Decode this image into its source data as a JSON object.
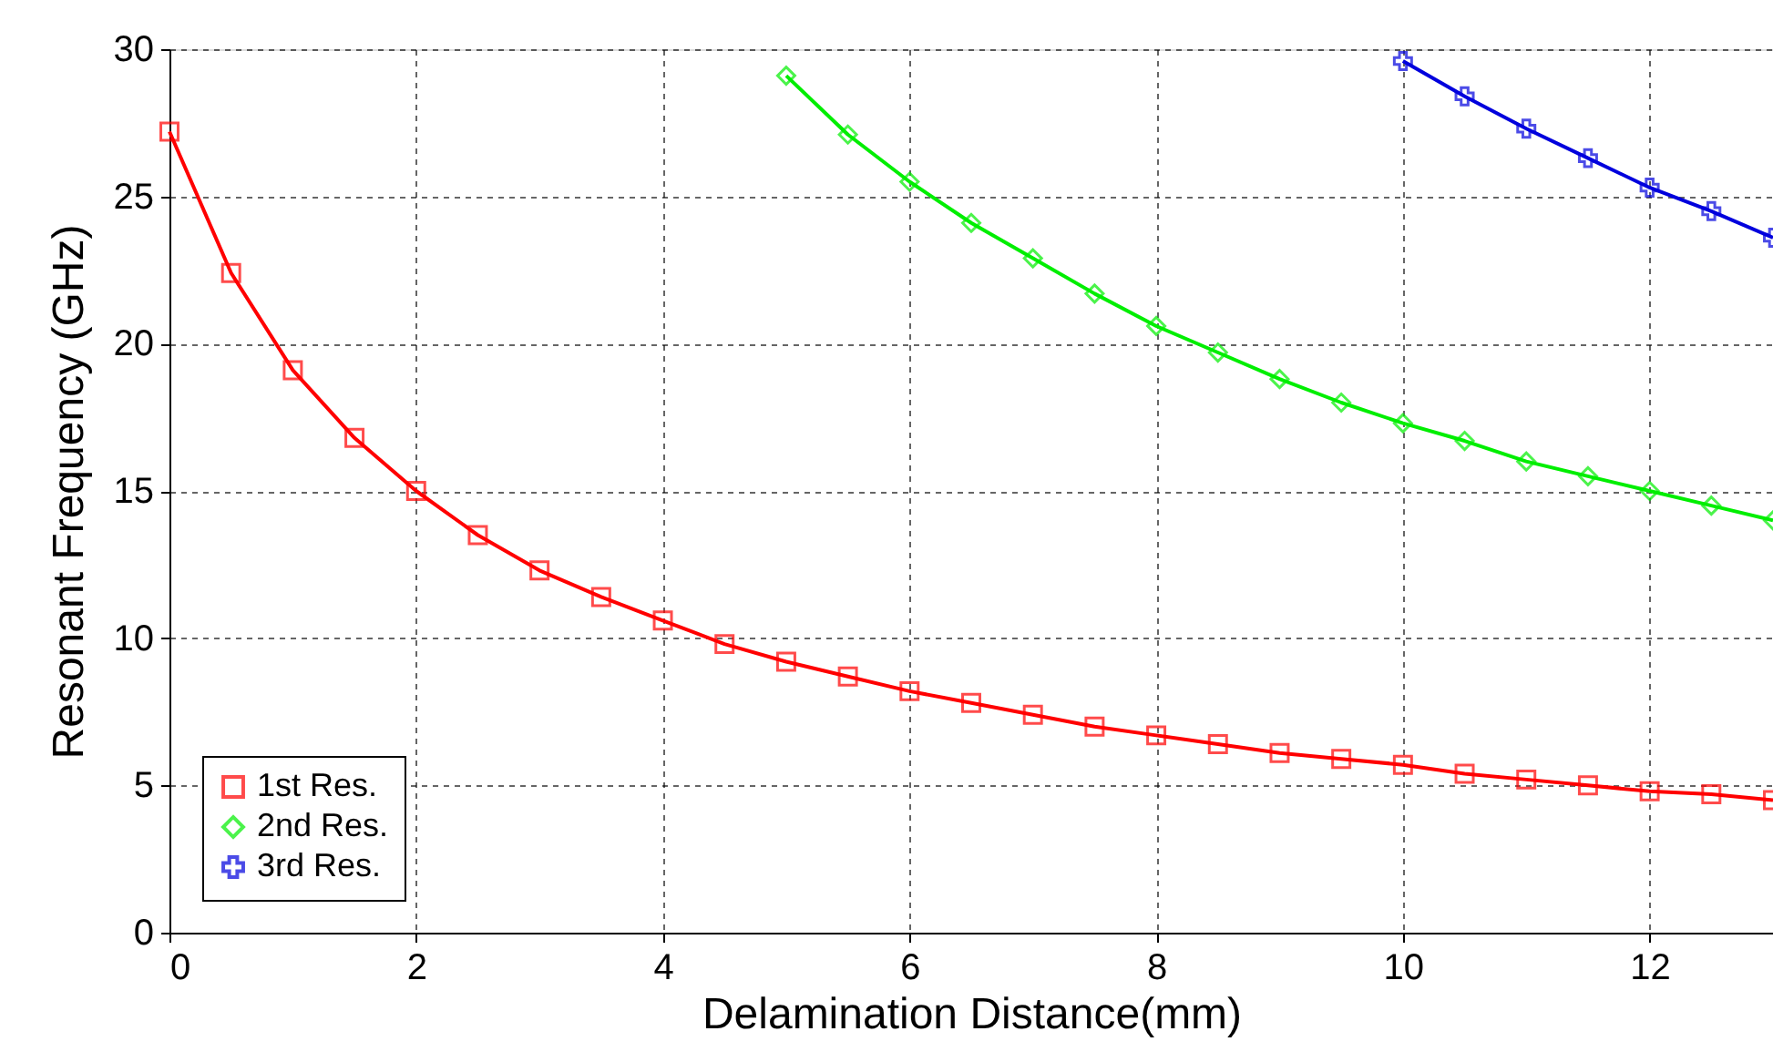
{
  "chart_data": {
    "type": "line",
    "xlabel": "Delamination Distance(mm)",
    "ylabel": "Resonant Frequency (GHz)",
    "xlim": [
      0,
      13
    ],
    "xticks": [
      0,
      2,
      4,
      6,
      8,
      10,
      12
    ],
    "ylim": [
      0,
      30
    ],
    "yticks": [
      0,
      5,
      10,
      15,
      20,
      25,
      30
    ],
    "grid": true,
    "legend": "bottom left",
    "line_style": "solid",
    "series": [
      {
        "name": "1st Res.",
        "color": "#ff0000",
        "marker": "square",
        "x": [
          0,
          0.5,
          1,
          1.5,
          2,
          2.5,
          3,
          3.5,
          4,
          4.5,
          5,
          5.5,
          6,
          6.5,
          7,
          7.5,
          8,
          8.5,
          9,
          9.5,
          10,
          10.5,
          11,
          11.5,
          12,
          12.5,
          13
        ],
        "values": [
          27.2,
          22.4,
          19.1,
          16.8,
          15.0,
          13.5,
          12.3,
          11.4,
          10.6,
          9.8,
          9.2,
          8.7,
          8.2,
          7.8,
          7.4,
          7.0,
          6.7,
          6.4,
          6.1,
          5.9,
          5.7,
          5.4,
          5.2,
          5.0,
          4.8,
          4.7,
          4.5
        ]
      },
      {
        "name": "2nd Res.",
        "color": "#00ee00",
        "marker": "diamond",
        "x": [
          5,
          5.5,
          6,
          6.5,
          7,
          7.5,
          8,
          8.5,
          9,
          9.5,
          10,
          10.5,
          11,
          11.5,
          12,
          12.5,
          13
        ],
        "values": [
          29.1,
          27.1,
          25.5,
          24.1,
          22.9,
          21.7,
          20.6,
          19.7,
          18.8,
          18.0,
          17.3,
          16.7,
          16.0,
          15.5,
          15.0,
          14.5,
          14.0
        ]
      },
      {
        "name": "3rd Res.",
        "color": "#0000dd",
        "marker": "cross",
        "x": [
          10,
          10.5,
          11,
          11.5,
          12,
          12.5,
          13
        ],
        "values": [
          29.6,
          28.4,
          27.3,
          26.3,
          25.3,
          24.5,
          23.6
        ]
      }
    ]
  }
}
